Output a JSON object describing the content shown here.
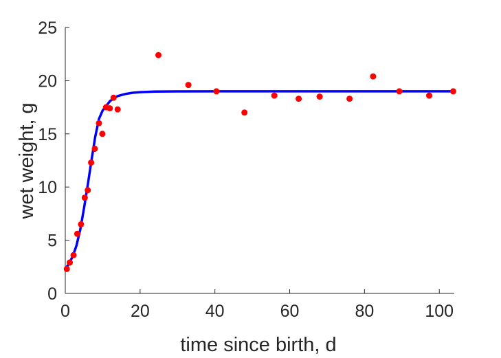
{
  "chart_data": {
    "type": "scatter",
    "xlabel": "time since birth, d",
    "ylabel": "wet weight, g",
    "xlim": [
      0,
      104
    ],
    "ylim": [
      0,
      25
    ],
    "xticks": [
      0,
      20,
      40,
      60,
      80,
      100
    ],
    "yticks": [
      0,
      5,
      10,
      15,
      20,
      25
    ],
    "grid": false,
    "series": [
      {
        "kind": "points",
        "color": "#ff0000",
        "points": [
          [
            0.4,
            2.3
          ],
          [
            1.2,
            2.9
          ],
          [
            2.2,
            3.6
          ],
          [
            3.2,
            5.6
          ],
          [
            4.2,
            6.5
          ],
          [
            5.2,
            9.0
          ],
          [
            6.0,
            9.7
          ],
          [
            6.9,
            12.3
          ],
          [
            7.9,
            13.6
          ],
          [
            9.0,
            16.0
          ],
          [
            9.9,
            15.0
          ],
          [
            10.9,
            17.5
          ],
          [
            11.9,
            17.4
          ],
          [
            12.9,
            18.4
          ],
          [
            14.0,
            17.3
          ],
          [
            24.9,
            22.4
          ],
          [
            32.9,
            19.6
          ],
          [
            40.4,
            19.0
          ],
          [
            47.9,
            17.0
          ],
          [
            55.9,
            18.6
          ],
          [
            62.4,
            18.3
          ],
          [
            68.0,
            18.5
          ],
          [
            76.0,
            18.3
          ],
          [
            82.3,
            20.4
          ],
          [
            89.3,
            19.0
          ],
          [
            97.3,
            18.6
          ],
          [
            103.7,
            19.0
          ]
        ]
      },
      {
        "kind": "fit-curve",
        "color": "#0000ff",
        "points": [
          [
            0.0,
            2.3
          ],
          [
            1.0,
            2.8
          ],
          [
            2.0,
            3.5
          ],
          [
            3.0,
            4.5
          ],
          [
            4.0,
            6.0
          ],
          [
            5.0,
            8.0
          ],
          [
            6.0,
            10.2
          ],
          [
            7.0,
            12.5
          ],
          [
            8.0,
            14.7
          ],
          [
            9.0,
            16.4
          ],
          [
            10.0,
            17.2
          ],
          [
            12.0,
            18.1
          ],
          [
            14.0,
            18.55
          ],
          [
            16.0,
            18.75
          ],
          [
            18.0,
            18.86
          ],
          [
            20.0,
            18.92
          ],
          [
            24.0,
            18.97
          ],
          [
            30.0,
            18.99
          ],
          [
            40.0,
            19.0
          ],
          [
            60.0,
            19.0
          ],
          [
            80.0,
            19.0
          ],
          [
            104.0,
            19.0
          ]
        ]
      }
    ]
  }
}
